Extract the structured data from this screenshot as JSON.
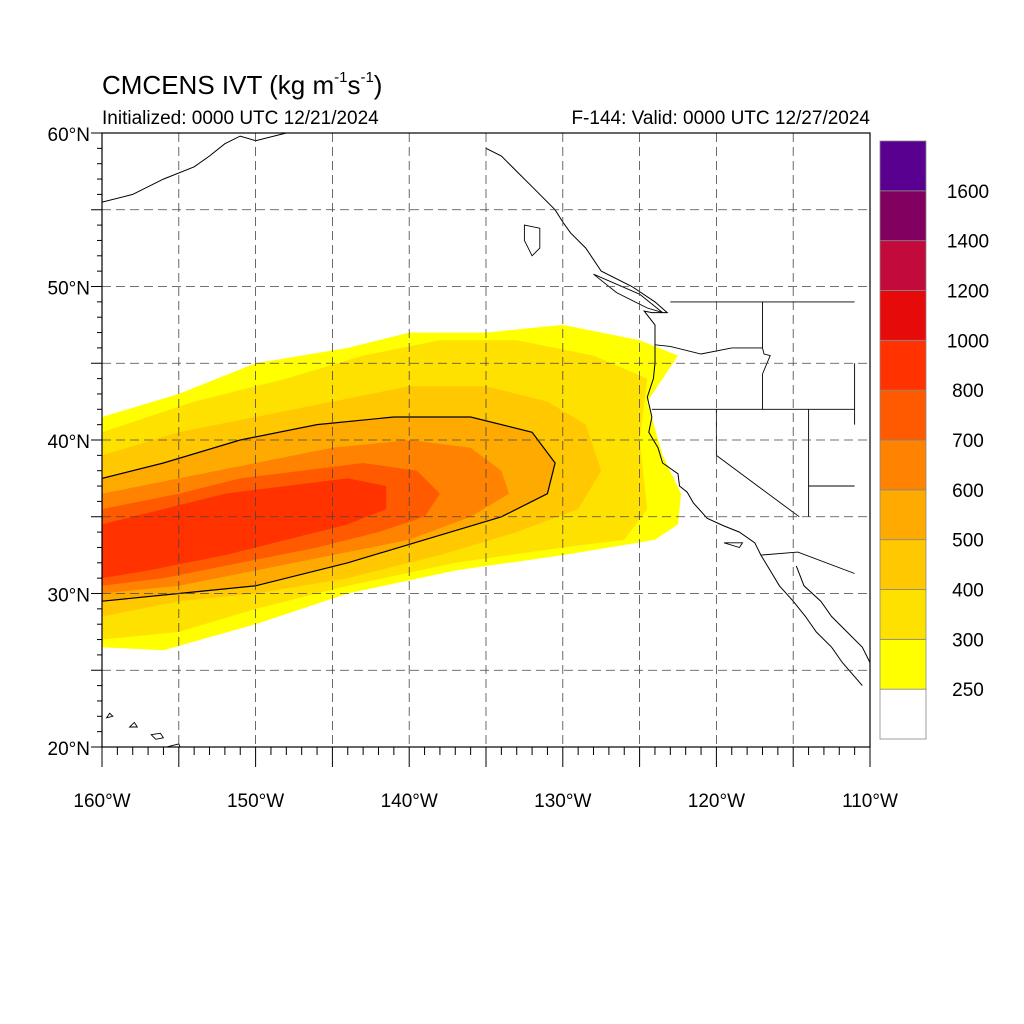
{
  "title": {
    "main": "CMCENS IVT (kg m",
    "exp1": "-1",
    "mid": "s",
    "exp2": "-1",
    "end": ")"
  },
  "subtitle_left": "Initialized: 0000 UTC 12/21/2024",
  "subtitle_right": "F-144: Valid: 0000 UTC 12/27/2024",
  "map": {
    "lon_range": [
      -160,
      -110
    ],
    "lat_range": [
      20,
      60
    ],
    "grid": "dashed",
    "lat_labels": [
      "60°N",
      "50°N",
      "40°N",
      "30°N",
      "20°N"
    ],
    "lat_values": [
      60,
      50,
      40,
      30,
      20
    ],
    "lon_labels": [
      "160°W",
      "150°W",
      "140°W",
      "130°W",
      "120°W",
      "110°W"
    ],
    "lon_values": [
      -160,
      -150,
      -140,
      -130,
      -120,
      -110
    ]
  },
  "colorbar": {
    "levels": [
      250,
      300,
      400,
      500,
      600,
      700,
      800,
      1000,
      1200,
      1400,
      1600
    ],
    "labels": [
      "250",
      "300",
      "400",
      "500",
      "600",
      "700",
      "800",
      "1000",
      "1200",
      "1400",
      "1600"
    ],
    "colors": [
      "#ffffff",
      "#ffff00",
      "#ffe100",
      "#ffc800",
      "#ffaa00",
      "#ff8200",
      "#ff5a00",
      "#ff3200",
      "#e60a0a",
      "#c30a3c",
      "#82005f",
      "#5a0091"
    ]
  },
  "ivt_bands": [
    {
      "level": 250,
      "points": [
        [
          -160,
          26.5
        ],
        [
          -156,
          26.3
        ],
        [
          -150,
          28
        ],
        [
          -144,
          30
        ],
        [
          -137,
          31.5
        ],
        [
          -130,
          32.5
        ],
        [
          -124,
          33.5
        ],
        [
          -122.5,
          34.5
        ],
        [
          -122.3,
          36.5
        ],
        [
          -123.5,
          39
        ],
        [
          -124.5,
          42.5
        ],
        [
          -122.5,
          45.5
        ],
        [
          -125,
          46.5
        ],
        [
          -130,
          47.5
        ],
        [
          -135,
          47
        ],
        [
          -140,
          47
        ],
        [
          -144,
          46
        ],
        [
          -150,
          45
        ],
        [
          -155,
          43
        ],
        [
          -160,
          41.5
        ]
      ]
    },
    {
      "level": 300,
      "points": [
        [
          -160,
          27
        ],
        [
          -155,
          27.5
        ],
        [
          -150,
          29
        ],
        [
          -144,
          30.5
        ],
        [
          -137,
          32
        ],
        [
          -130,
          33
        ],
        [
          -126,
          33.5
        ],
        [
          -124.5,
          35.5
        ],
        [
          -125,
          40
        ],
        [
          -124.5,
          44
        ],
        [
          -128,
          45.5
        ],
        [
          -133,
          46.5
        ],
        [
          -138,
          46.5
        ],
        [
          -143,
          45.5
        ],
        [
          -148,
          44
        ],
        [
          -154,
          42.5
        ],
        [
          -160,
          40.5
        ]
      ]
    },
    {
      "level": 400,
      "points": [
        [
          -160,
          28.5
        ],
        [
          -155,
          29.5
        ],
        [
          -150,
          30
        ],
        [
          -144,
          31
        ],
        [
          -138,
          32.5
        ],
        [
          -133,
          34
        ],
        [
          -129,
          35.5
        ],
        [
          -127.5,
          38
        ],
        [
          -128.5,
          41
        ],
        [
          -131,
          42.5
        ],
        [
          -135,
          43.5
        ],
        [
          -140,
          43.5
        ],
        [
          -145,
          42.5
        ],
        [
          -150,
          41.5
        ],
        [
          -155,
          40.5
        ],
        [
          -160,
          39
        ]
      ]
    },
    {
      "level": 500,
      "points": [
        [
          -160,
          29.5
        ],
        [
          -155,
          30
        ],
        [
          -150,
          30.5
        ],
        [
          -144,
          32
        ],
        [
          -139,
          33.5
        ],
        [
          -134,
          35
        ],
        [
          -131,
          36.5
        ],
        [
          -130.5,
          38.5
        ],
        [
          -132,
          40.5
        ],
        [
          -136,
          41.5
        ],
        [
          -141,
          41.5
        ],
        [
          -146,
          41
        ],
        [
          -151,
          40
        ],
        [
          -156,
          38.5
        ],
        [
          -160,
          37.5
        ]
      ]
    },
    {
      "level": 600,
      "points": [
        [
          -160,
          30
        ],
        [
          -155,
          30.5
        ],
        [
          -150,
          31.5
        ],
        [
          -145,
          32.5
        ],
        [
          -140,
          33.5
        ],
        [
          -136,
          35
        ],
        [
          -133.5,
          36.5
        ],
        [
          -134,
          38
        ],
        [
          -136,
          39.5
        ],
        [
          -140,
          40
        ],
        [
          -145,
          39.5
        ],
        [
          -150,
          38.5
        ],
        [
          -155,
          37.5
        ],
        [
          -160,
          36.5
        ]
      ]
    },
    {
      "level": 700,
      "points": [
        [
          -160,
          30.5
        ],
        [
          -156,
          31
        ],
        [
          -151,
          32
        ],
        [
          -146,
          33
        ],
        [
          -142,
          34
        ],
        [
          -139,
          35
        ],
        [
          -138,
          36.5
        ],
        [
          -139.5,
          38
        ],
        [
          -143,
          38.5
        ],
        [
          -147,
          38
        ],
        [
          -151,
          37.5
        ],
        [
          -155,
          36.5
        ],
        [
          -160,
          35.5
        ]
      ]
    },
    {
      "level": 800,
      "points": [
        [
          -160,
          31
        ],
        [
          -157,
          31.5
        ],
        [
          -152,
          32.5
        ],
        [
          -148,
          33.5
        ],
        [
          -144,
          34.5
        ],
        [
          -141.5,
          35.5
        ],
        [
          -141.5,
          37
        ],
        [
          -144,
          37.5
        ],
        [
          -148,
          37
        ],
        [
          -152,
          36.5
        ],
        [
          -156,
          35.5
        ],
        [
          -160,
          34.5
        ]
      ]
    }
  ],
  "ivt_outline_level": 500,
  "coastline_west": [
    [
      -135,
      59
    ],
    [
      -134,
      58.5
    ],
    [
      -133,
      57.5
    ],
    [
      -132,
      56.5
    ],
    [
      -130.5,
      55
    ],
    [
      -130,
      54.2
    ],
    [
      -129.5,
      53.5
    ],
    [
      -128.5,
      52.5
    ],
    [
      -127.5,
      51
    ],
    [
      -125.5,
      50
    ],
    [
      -124,
      49
    ],
    [
      -123.2,
      48.3
    ],
    [
      -124.2,
      48.3
    ],
    [
      -124.7,
      48.4
    ],
    [
      -124,
      47.5
    ],
    [
      -124,
      46
    ],
    [
      -124,
      45
    ],
    [
      -124.1,
      44
    ],
    [
      -124.5,
      42.8
    ],
    [
      -124.2,
      41.5
    ],
    [
      -124.4,
      40.5
    ],
    [
      -123.8,
      39.5
    ],
    [
      -123.5,
      38.5
    ],
    [
      -122.5,
      37.8
    ],
    [
      -122.4,
      37
    ],
    [
      -121.9,
      36.6
    ],
    [
      -121.5,
      35.9
    ],
    [
      -120.6,
      34.9
    ],
    [
      -119.5,
      34.4
    ],
    [
      -118.5,
      34
    ],
    [
      -117.5,
      33.3
    ],
    [
      -117.1,
      32.5
    ],
    [
      -116.5,
      31.5
    ],
    [
      -115.9,
      30.5
    ],
    [
      -115,
      29.5
    ],
    [
      -114.2,
      28.5
    ],
    [
      -113.5,
      27.5
    ],
    [
      -112.5,
      26.5
    ],
    [
      -111.8,
      25.5
    ],
    [
      -110.5,
      24
    ]
  ],
  "gulf_coast": [
    [
      -114.8,
      31.8
    ],
    [
      -114.3,
      30.5
    ],
    [
      -113.2,
      29.5
    ],
    [
      -112.5,
      28.5
    ],
    [
      -111.5,
      27.5
    ],
    [
      -110.5,
      26.5
    ],
    [
      -110,
      25.5
    ]
  ],
  "state_borders": [
    [
      [
        -124.2,
        42
      ],
      [
        -120,
        42
      ],
      [
        -111,
        42
      ]
    ],
    [
      [
        -120,
        42
      ],
      [
        -120,
        39
      ],
      [
        -114.6,
        35
      ]
    ],
    [
      [
        -117,
        49
      ],
      [
        -117,
        46
      ],
      [
        -116.9,
        45.6
      ],
      [
        -116.5,
        45.5
      ],
      [
        -117,
        44.3
      ]
    ],
    [
      [
        -124,
        46.2
      ],
      [
        -123,
        46.1
      ],
      [
        -121,
        45.6
      ],
      [
        -119,
        46
      ],
      [
        -117,
        46
      ]
    ],
    [
      [
        -117,
        42
      ],
      [
        -117,
        44.3
      ]
    ],
    [
      [
        -114,
        42
      ],
      [
        -114,
        37
      ],
      [
        -114,
        35
      ]
    ],
    [
      [
        -114,
        37
      ],
      [
        -111,
        37
      ]
    ],
    [
      [
        -111,
        45
      ],
      [
        -111,
        41
      ],
      [
        -111,
        42
      ]
    ],
    [
      [
        -123,
        49
      ],
      [
        -111,
        49
      ]
    ],
    [
      [
        -117.1,
        32.5
      ],
      [
        -114.7,
        32.7
      ],
      [
        -111,
        31.3
      ]
    ]
  ],
  "alaska_coast": [
    [
      -160,
      55.5
    ],
    [
      -158,
      56
    ],
    [
      -156,
      57
    ],
    [
      -154,
      57.8
    ],
    [
      -153,
      58.5
    ],
    [
      -152,
      59.3
    ],
    [
      -151,
      59.8
    ],
    [
      -150,
      59.5
    ],
    [
      -148,
      60
    ]
  ],
  "islands": [
    [
      [
        -155,
        20.2
      ],
      [
        -155.8,
        20
      ],
      [
        -155.9,
        19.5
      ],
      [
        -155,
        19.4
      ],
      [
        -154.8,
        19.7
      ]
    ],
    [
      [
        -156.8,
        20.8
      ],
      [
        -156.2,
        20.9
      ],
      [
        -156,
        20.6
      ],
      [
        -156.5,
        20.5
      ]
    ],
    [
      [
        -157.9,
        21.6
      ],
      [
        -157.7,
        21.3
      ],
      [
        -158.2,
        21.3
      ]
    ],
    [
      [
        -159.5,
        22.2
      ],
      [
        -159.3,
        22
      ],
      [
        -159.7,
        21.9
      ]
    ],
    [
      [
        -132.5,
        54
      ],
      [
        -131.5,
        53.8
      ],
      [
        -131.5,
        52.5
      ],
      [
        -132,
        52
      ],
      [
        -132.5,
        53
      ]
    ],
    [
      [
        -128,
        50.8
      ],
      [
        -125,
        49.5
      ],
      [
        -123.5,
        48.3
      ],
      [
        -124.5,
        48.6
      ],
      [
        -126.5,
        49.6
      ]
    ],
    [
      [
        -119.5,
        33.3
      ],
      [
        -118.3,
        33.3
      ],
      [
        -118.5,
        33.0
      ]
    ]
  ]
}
